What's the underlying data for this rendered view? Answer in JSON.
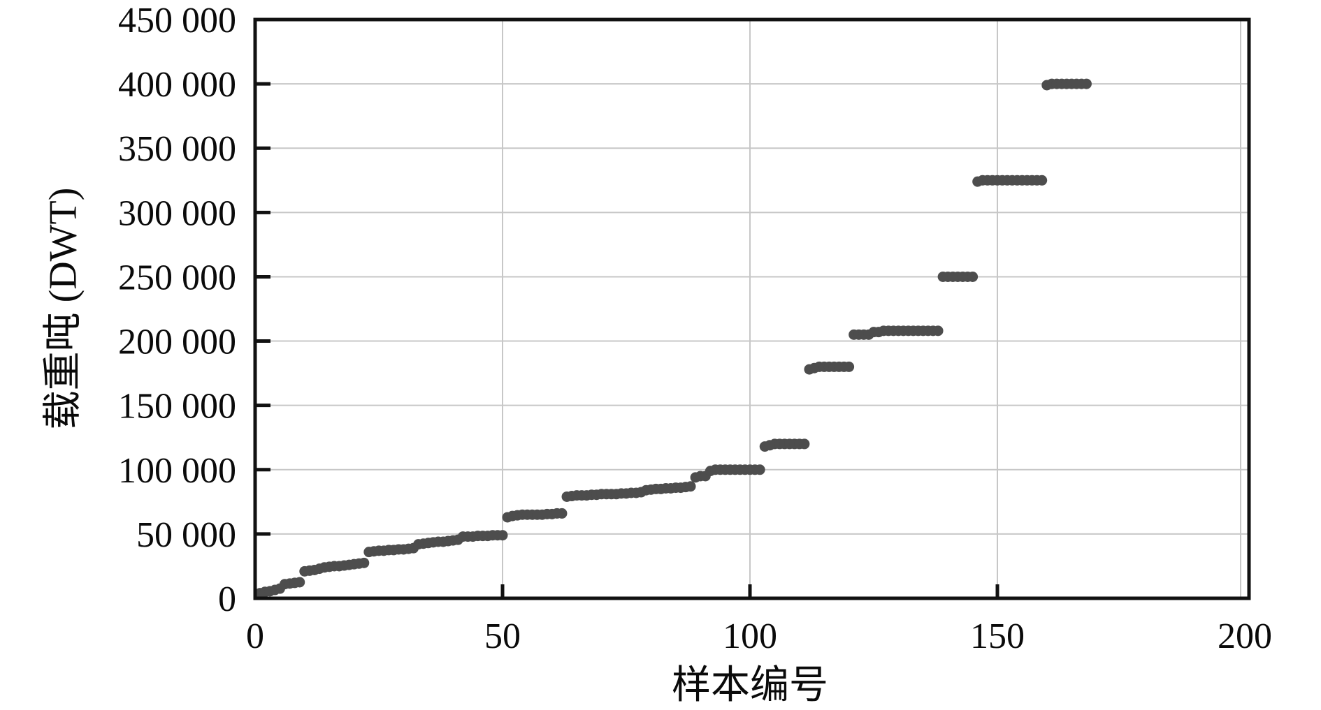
{
  "chart_data": {
    "type": "scatter",
    "title": "",
    "xlabel": "样本编号",
    "ylabel": "载重吨 (DWT)",
    "x_note": "x value of each point is its sample index 1..168, values sorted ascending",
    "xlim": [
      0,
      200
    ],
    "ylim": [
      0,
      450000
    ],
    "grid": true,
    "legend": "none",
    "x_ticks": [
      0,
      50,
      100,
      150,
      200
    ],
    "x_tick_labels": [
      "0",
      "50",
      "100",
      "150",
      "200"
    ],
    "y_ticks": [
      0,
      50000,
      100000,
      150000,
      200000,
      250000,
      300000,
      350000,
      400000,
      450000
    ],
    "y_tick_labels": [
      "0",
      "50 000",
      "100 000",
      "150 000",
      "200 000",
      "250 000",
      "300 000",
      "350 000",
      "400 000",
      "450 000"
    ],
    "marker_color": "#4d4d4d",
    "grid_color": "#c7c7c7",
    "axis_color": "#111111",
    "values": [
      4000,
      5000,
      5500,
      6500,
      7500,
      11000,
      11500,
      12000,
      12500,
      21000,
      21500,
      22000,
      23000,
      24000,
      24500,
      25000,
      25000,
      25500,
      26000,
      26500,
      27000,
      27500,
      36000,
      36500,
      37000,
      37000,
      37500,
      37500,
      38000,
      38000,
      38500,
      39000,
      42000,
      42500,
      43000,
      43500,
      44000,
      44000,
      44500,
      45000,
      45500,
      48000,
      48000,
      48000,
      48500,
      48500,
      48500,
      49000,
      49000,
      49000,
      63000,
      64000,
      64500,
      65000,
      65000,
      65000,
      65000,
      65000,
      65500,
      65500,
      66000,
      66000,
      79000,
      79500,
      80000,
      80000,
      80000,
      80500,
      80500,
      81000,
      81000,
      81000,
      81000,
      81500,
      81500,
      82000,
      82000,
      82500,
      84000,
      84500,
      85000,
      85000,
      85500,
      85500,
      86000,
      86000,
      86500,
      87000,
      94000,
      95000,
      95000,
      99000,
      100000,
      100000,
      100000,
      100000,
      100000,
      100000,
      100000,
      100000,
      100000,
      100000,
      118000,
      119000,
      120000,
      120000,
      120000,
      120000,
      120000,
      120000,
      120000,
      178000,
      179000,
      180000,
      180000,
      180000,
      180000,
      180000,
      180000,
      180000,
      205000,
      205000,
      205000,
      205000,
      207000,
      207000,
      208000,
      208000,
      208000,
      208000,
      208000,
      208000,
      208000,
      208000,
      208000,
      208000,
      208000,
      208000,
      250000,
      250000,
      250000,
      250000,
      250000,
      250000,
      250000,
      324000,
      325000,
      325000,
      325000,
      325000,
      325000,
      325000,
      325000,
      325000,
      325000,
      325000,
      325000,
      325000,
      325000,
      399000,
      400000,
      400000,
      400000,
      400000,
      400000,
      400000,
      400000,
      400000
    ]
  }
}
